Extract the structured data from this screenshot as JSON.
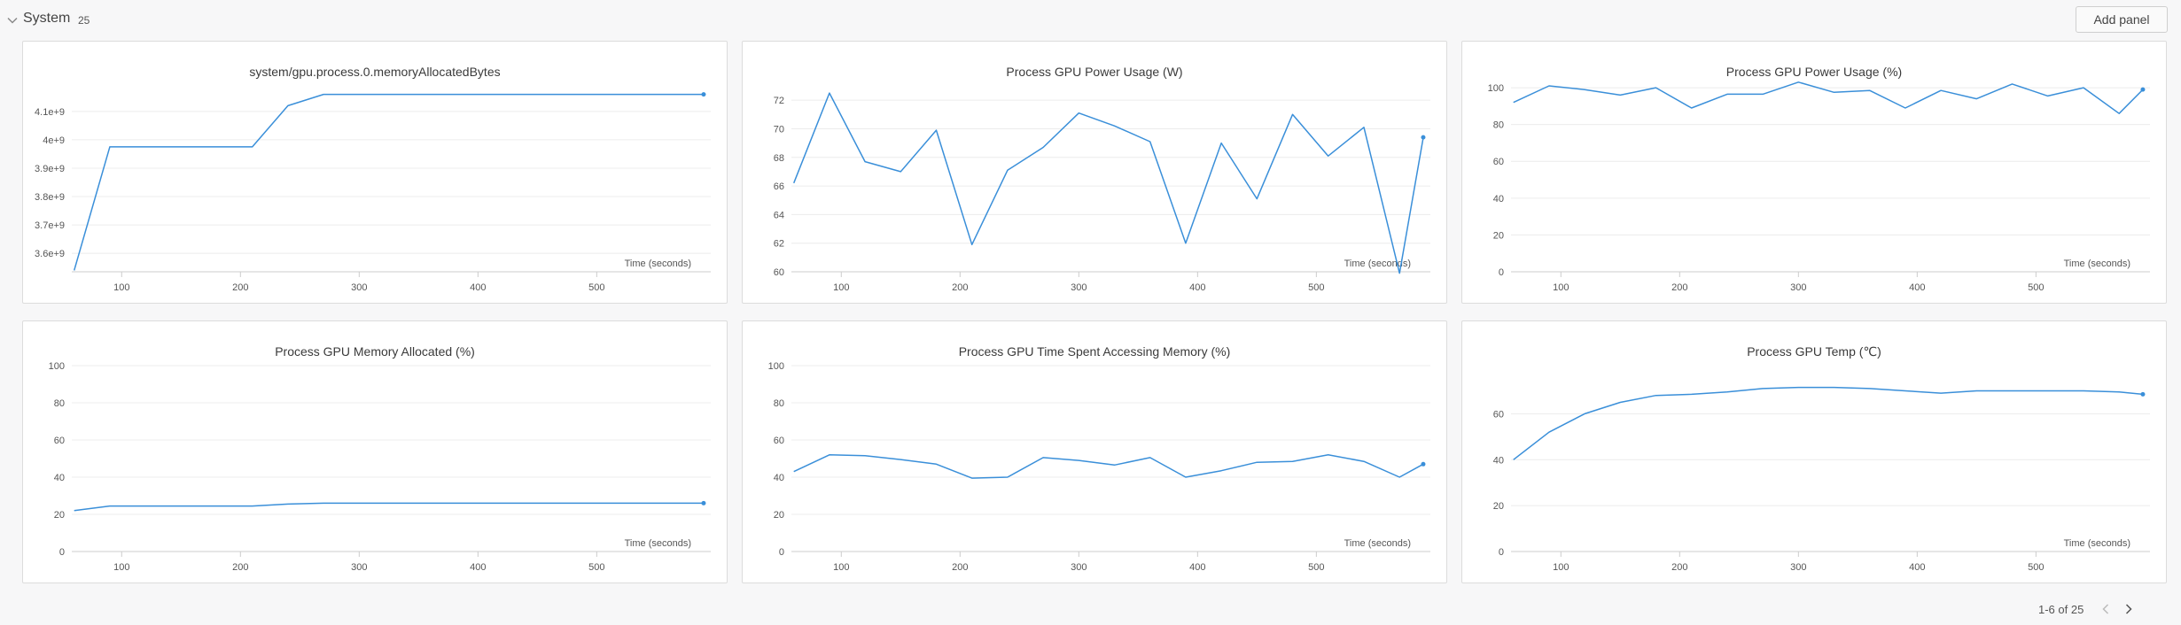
{
  "section": {
    "title": "System",
    "count": "25",
    "add_panel_label": "Add panel",
    "icons": {
      "collapse": "chevron-down-icon",
      "prev": "chevron-left-icon",
      "next": "chevron-right-icon"
    }
  },
  "pagination": {
    "text": "1-6 of 25"
  },
  "colors": {
    "line": "#3a8fd9",
    "grid": "#ececec",
    "axis": "#cccccc",
    "tick_text": "#555555"
  },
  "chart_data": [
    {
      "type": "line",
      "title": "system/gpu.process.0.memoryAllocatedBytes",
      "xlabel": "Time (seconds)",
      "ylabel": "",
      "xlim": [
        58,
        596
      ],
      "ylim": [
        3535000000.0,
        4190000000.0
      ],
      "xticks": [
        100,
        200,
        300,
        400,
        500
      ],
      "yticks": [
        3600000000.0,
        3700000000.0,
        3800000000.0,
        3900000000.0,
        4000000000.0,
        4100000000.0
      ],
      "ytick_labels": [
        "3.6e+9",
        "3.7e+9",
        "3.8e+9",
        "3.9e+9",
        "4e+9",
        "4.1e+9"
      ],
      "x": [
        60,
        90,
        210,
        240,
        270,
        300,
        330,
        360,
        390,
        420,
        450,
        480,
        510,
        540,
        570,
        590
      ],
      "y": [
        3540000000.0,
        3975000000.0,
        3975000000.0,
        4120000000.0,
        4160000000.0,
        4160000000.0,
        4160000000.0,
        4160000000.0,
        4160000000.0,
        4160000000.0,
        4160000000.0,
        4160000000.0,
        4160000000.0,
        4160000000.0,
        4160000000.0,
        4160000000.0
      ]
    },
    {
      "type": "line",
      "title": "Process GPU Power Usage (W)",
      "xlabel": "Time (seconds)",
      "ylabel": "",
      "xlim": [
        58,
        596
      ],
      "ylim": [
        60,
        73
      ],
      "xticks": [
        100,
        200,
        300,
        400,
        500
      ],
      "yticks": [
        60,
        62,
        64,
        66,
        68,
        70,
        72
      ],
      "ytick_labels": [
        "60",
        "62",
        "64",
        "66",
        "68",
        "70",
        "72"
      ],
      "x": [
        60,
        90,
        120,
        150,
        180,
        210,
        240,
        270,
        300,
        330,
        360,
        390,
        420,
        450,
        480,
        510,
        540,
        570,
        590
      ],
      "y": [
        66.2,
        72.5,
        67.7,
        67.0,
        69.9,
        61.9,
        67.1,
        68.7,
        71.1,
        70.2,
        69.1,
        62.0,
        69.0,
        65.1,
        71.0,
        68.1,
        70.1,
        59.9,
        69.4
      ]
    },
    {
      "type": "line",
      "title": "Process GPU Power Usage (%)",
      "xlabel": "Time (seconds)",
      "ylabel": "",
      "xlim": [
        58,
        596
      ],
      "ylim": [
        0,
        101
      ],
      "xticks": [
        100,
        200,
        300,
        400,
        500
      ],
      "yticks": [
        0,
        20,
        40,
        60,
        80,
        100
      ],
      "ytick_labels": [
        "0",
        "20",
        "40",
        "60",
        "80",
        "100"
      ],
      "x": [
        60,
        90,
        120,
        150,
        180,
        210,
        240,
        270,
        300,
        330,
        360,
        390,
        420,
        450,
        480,
        510,
        540,
        570,
        590
      ],
      "y": [
        92,
        101,
        99,
        96,
        100,
        89,
        96.5,
        96.5,
        103,
        97.5,
        98.5,
        89,
        98.5,
        94,
        102,
        95.5,
        100,
        86,
        99
      ]
    },
    {
      "type": "line",
      "title": "Process GPU Memory Allocated (%)",
      "xlabel": "Time (seconds)",
      "ylabel": "",
      "xlim": [
        58,
        596
      ],
      "ylim": [
        0,
        100
      ],
      "xticks": [
        100,
        200,
        300,
        400,
        500
      ],
      "yticks": [
        0,
        20,
        40,
        60,
        80,
        100
      ],
      "ytick_labels": [
        "0",
        "20",
        "40",
        "60",
        "80",
        "100"
      ],
      "x": [
        60,
        90,
        120,
        150,
        180,
        210,
        240,
        270,
        300,
        330,
        360,
        390,
        420,
        450,
        480,
        510,
        540,
        570,
        590
      ],
      "y": [
        22,
        24.5,
        24.5,
        24.5,
        24.5,
        24.5,
        25.5,
        26,
        26,
        26,
        26,
        26,
        26,
        26,
        26,
        26,
        26,
        26,
        26
      ]
    },
    {
      "type": "line",
      "title": "Process GPU Time Spent Accessing Memory (%)",
      "xlabel": "Time (seconds)",
      "ylabel": "",
      "xlim": [
        58,
        596
      ],
      "ylim": [
        0,
        100
      ],
      "xticks": [
        100,
        200,
        300,
        400,
        500
      ],
      "yticks": [
        0,
        20,
        40,
        60,
        80,
        100
      ],
      "ytick_labels": [
        "0",
        "20",
        "40",
        "60",
        "80",
        "100"
      ],
      "x": [
        60,
        90,
        120,
        150,
        180,
        210,
        240,
        270,
        300,
        330,
        360,
        390,
        420,
        450,
        480,
        510,
        540,
        570,
        590
      ],
      "y": [
        43,
        52,
        51.5,
        49.5,
        47,
        39.5,
        40,
        50.5,
        49,
        46.5,
        50.5,
        40,
        43.5,
        48,
        48.5,
        52,
        48.5,
        40,
        47
      ]
    },
    {
      "type": "line",
      "title": "Process GPU Temp (℃)",
      "xlabel": "Time (seconds)",
      "ylabel": "",
      "xlim": [
        58,
        596
      ],
      "ylim": [
        0,
        81
      ],
      "xticks": [
        100,
        200,
        300,
        400,
        500
      ],
      "yticks": [
        0,
        20,
        40,
        60
      ],
      "ytick_labels": [
        "0",
        "20",
        "40",
        "60"
      ],
      "x": [
        60,
        90,
        120,
        150,
        180,
        210,
        240,
        270,
        300,
        330,
        360,
        390,
        420,
        450,
        480,
        510,
        540,
        570,
        590
      ],
      "y": [
        40,
        52,
        60,
        65,
        68,
        68.5,
        69.5,
        71,
        71.5,
        71.5,
        71,
        70,
        69,
        70,
        70,
        70,
        70,
        69.5,
        68.5
      ]
    }
  ]
}
